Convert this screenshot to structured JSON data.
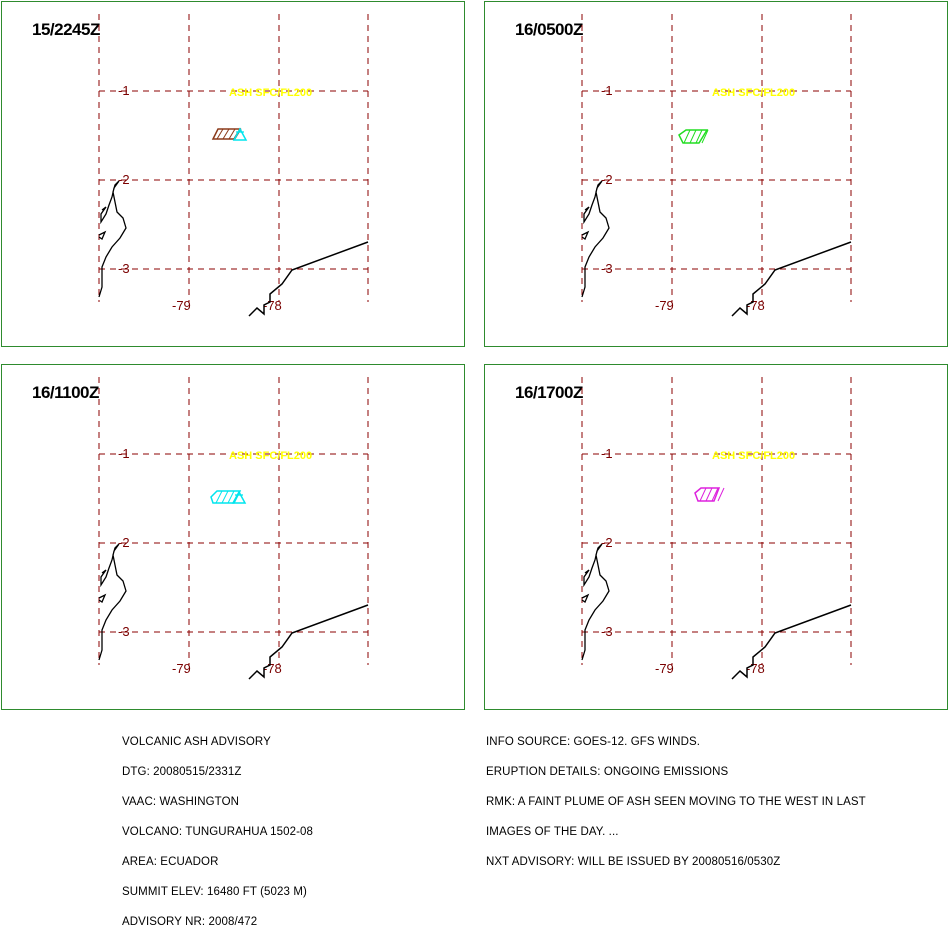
{
  "panels": [
    {
      "time": "15/2245Z",
      "plume_color": "#8b3a1a",
      "plume": "brown"
    },
    {
      "time": "16/0500Z",
      "plume_color": "#22dd22",
      "plume": "green"
    },
    {
      "time": "16/1100Z",
      "plume_color": "#00e5ee",
      "plume": "cyan"
    },
    {
      "time": "16/1700Z",
      "plume_color": "#dd22dd",
      "plume": "magenta"
    }
  ],
  "map": {
    "lat_labels": [
      "-1",
      "-2",
      "-3"
    ],
    "lon_labels": [
      "-79",
      "-78"
    ],
    "ash_label": "ASH SFC/FL200",
    "volcano_symbol_color": "#00e5ee",
    "grid_color": "#8b0000",
    "coast_color": "#000000"
  },
  "advisory_left": [
    "VOLCANIC ASH ADVISORY",
    "DTG: 20080515/2331Z",
    "VAAC: WASHINGTON",
    "VOLCANO: TUNGURAHUA 1502-08",
    "AREA: ECUADOR",
    "SUMMIT ELEV: 16480 FT (5023 M)",
    "ADVISORY NR: 2008/472"
  ],
  "advisory_right": [
    "INFO SOURCE: GOES-12. GFS WINDS.",
    "ERUPTION DETAILS: ONGOING EMISSIONS",
    "RMK: A FAINT PLUME OF ASH SEEN MOVING TO THE WEST IN LAST",
    "IMAGES OF THE DAY. ...",
    "NXT ADVISORY: WILL BE ISSUED BY 20080516/0530Z"
  ]
}
